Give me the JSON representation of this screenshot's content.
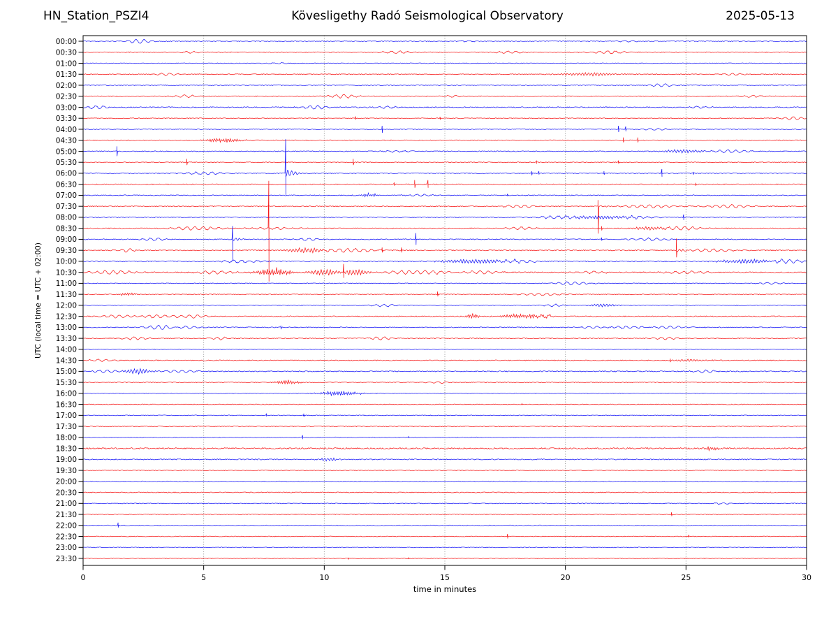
{
  "header": {
    "station": "HN_Station_PSZI4",
    "observatory": "Kövesligethy Radó Seismological Observatory",
    "date": "2025-05-13"
  },
  "axes": {
    "xlabel": "time in minutes",
    "ylabel": "UTC (local time = UTC + 02:00)",
    "xlim": [
      0,
      30
    ],
    "xticks": [
      0,
      5,
      10,
      15,
      20,
      25,
      30
    ],
    "grid_minutes": [
      5,
      10,
      15,
      20,
      25
    ],
    "grid_on": true
  },
  "colors": {
    "blue_trace": "#0000f5",
    "red_trace": "#f50000",
    "grid": "#7a7a7a",
    "frame": "#000000",
    "text": "#000000",
    "background": "#ffffff"
  },
  "chart_data": {
    "type": "line",
    "subtype": "helicorder-day-plot",
    "minutes_per_row": 30,
    "row_spacing_px": 15.745,
    "event_format": "types: w=slow wiggle, b=burst packet, B=dense dark burst, s=spike[up,down], S=major spike with coda; fields [type, start_minute, amplitude_px, width_min_or_down_px]",
    "rows": [
      {
        "label": "00:00",
        "color": "b",
        "noise": 0.55,
        "events": [
          [
            "w",
            2.3,
            3,
            0.5
          ],
          [
            "w",
            16,
            1.2,
            0.4
          ],
          [
            "w",
            22.5,
            1,
            0.5
          ]
        ]
      },
      {
        "label": "00:30",
        "color": "r",
        "noise": 0.6,
        "events": [
          [
            "w",
            4.5,
            1.2,
            0.5
          ],
          [
            "w",
            13,
            1.8,
            0.6
          ],
          [
            "w",
            17.7,
            1.8,
            0.5
          ],
          [
            "w",
            21.8,
            1.8,
            0.8
          ]
        ]
      },
      {
        "label": "01:00",
        "color": "b",
        "noise": 0.5,
        "events": [
          [
            "w",
            8,
            0.8,
            0.5
          ]
        ]
      },
      {
        "label": "01:30",
        "color": "r",
        "noise": 0.55,
        "events": [
          [
            "w",
            3.5,
            1.8,
            0.5
          ],
          [
            "b",
            21,
            2,
            1.2
          ],
          [
            "w",
            27,
            1.2,
            0.5
          ]
        ]
      },
      {
        "label": "02:00",
        "color": "b",
        "noise": 0.5,
        "events": [
          [
            "w",
            24,
            1.8,
            0.6
          ]
        ]
      },
      {
        "label": "02:30",
        "color": "r",
        "noise": 0.6,
        "events": [
          [
            "w",
            4.2,
            2,
            0.5
          ],
          [
            "w",
            10.8,
            2.5,
            0.6
          ],
          [
            "w",
            15.2,
            1.3,
            0.4
          ],
          [
            "w",
            27.8,
            1.5,
            0.5
          ]
        ]
      },
      {
        "label": "03:00",
        "color": "b",
        "noise": 0.7,
        "events": [
          [
            "w",
            0.6,
            2,
            0.5
          ],
          [
            "w",
            9.6,
            3,
            0.5
          ],
          [
            "w",
            12.5,
            1.5,
            0.6
          ],
          [
            "w",
            25.5,
            1.2,
            0.6
          ]
        ]
      },
      {
        "label": "03:30",
        "color": "r",
        "noise": 0.5,
        "events": [
          [
            "s",
            11.3,
            2,
            2
          ],
          [
            "s",
            14.8,
            2,
            2
          ],
          [
            "w",
            29.4,
            2.2,
            0.5
          ]
        ]
      },
      {
        "label": "04:00",
        "color": "b",
        "noise": 0.5,
        "events": [
          [
            "s",
            12.4,
            5,
            5
          ],
          [
            "s",
            22.2,
            5,
            4
          ],
          [
            "s",
            22.5,
            4,
            3
          ],
          [
            "w",
            23.8,
            1.5,
            0.5
          ]
        ]
      },
      {
        "label": "04:30",
        "color": "r",
        "noise": 0.6,
        "events": [
          [
            "B",
            5.9,
            2.8,
            0.7
          ],
          [
            "s",
            22.4,
            4,
            3
          ],
          [
            "s",
            23.0,
            4,
            3
          ]
        ]
      },
      {
        "label": "05:00",
        "color": "b",
        "noise": 0.6,
        "events": [
          [
            "s",
            1.4,
            7,
            7
          ],
          [
            "w",
            13,
            1.3,
            0.5
          ],
          [
            "b",
            24.8,
            2.2,
            0.9
          ],
          [
            "w",
            26.8,
            1.8,
            0.8
          ]
        ]
      },
      {
        "label": "05:30",
        "color": "r",
        "noise": 0.5,
        "events": [
          [
            "s",
            4.3,
            5,
            4
          ],
          [
            "s",
            11.2,
            5,
            4
          ],
          [
            "s",
            18.8,
            2,
            2
          ],
          [
            "s",
            22.2,
            2.5,
            2
          ]
        ]
      },
      {
        "label": "06:00",
        "color": "b",
        "noise": 0.6,
        "events": [
          [
            "w",
            5,
            2,
            0.8
          ],
          [
            "S",
            8.4,
            49,
            31
          ],
          [
            "s",
            18.6,
            3,
            3
          ],
          [
            "s",
            18.9,
            3,
            2
          ],
          [
            "s",
            21.6,
            3,
            2
          ],
          [
            "s",
            24.0,
            6,
            5
          ],
          [
            "s",
            25.3,
            2,
            2
          ]
        ]
      },
      {
        "label": "06:30",
        "color": "r",
        "noise": 0.6,
        "events": [
          [
            "s",
            12.9,
            2.5,
            2
          ],
          [
            "s",
            13.75,
            6,
            5
          ],
          [
            "s",
            14.3,
            6,
            5
          ],
          [
            "s",
            25.4,
            2,
            2
          ]
        ]
      },
      {
        "label": "07:00",
        "color": "b",
        "noise": 0.6,
        "events": [
          [
            "B",
            11.9,
            2,
            0.4
          ],
          [
            "w",
            14,
            1.5,
            0.5
          ],
          [
            "s",
            17.6,
            2,
            1.5
          ]
        ]
      },
      {
        "label": "07:30",
        "color": "r",
        "noise": 0.6,
        "events": [
          [
            "w",
            18,
            2,
            0.7
          ],
          [
            "S",
            21.35,
            9,
            39
          ],
          [
            "w",
            23.5,
            2,
            1.2
          ],
          [
            "w",
            26.8,
            2.5,
            0.8
          ]
        ]
      },
      {
        "label": "08:00",
        "color": "b",
        "noise": 0.6,
        "events": [
          [
            "w",
            19.8,
            2,
            1
          ],
          [
            "b",
            21.5,
            2,
            1.5
          ],
          [
            "w",
            23,
            1.5,
            1
          ],
          [
            "s",
            24.9,
            4,
            4
          ]
        ]
      },
      {
        "label": "08:30",
        "color": "r",
        "noise": 0.6,
        "events": [
          [
            "w",
            4.7,
            2.5,
            1
          ],
          [
            "w",
            8,
            1.5,
            1
          ],
          [
            "s",
            7.7,
            68,
            76
          ],
          [
            "w",
            18.2,
            2,
            0.6
          ],
          [
            "s",
            21.5,
            3,
            3
          ],
          [
            "b",
            23.5,
            2,
            0.8
          ],
          [
            "w",
            24.8,
            2.5,
            0.8
          ]
        ]
      },
      {
        "label": "09:00",
        "color": "b",
        "noise": 0.6,
        "events": [
          [
            "w",
            2.9,
            2,
            0.5
          ],
          [
            "S",
            6.2,
            19,
            31
          ],
          [
            "w",
            9.3,
            1.8,
            0.5
          ],
          [
            "s",
            13.8,
            9,
            8
          ],
          [
            "s",
            21.5,
            2.5,
            2
          ],
          [
            "w",
            23.5,
            1.8,
            0.8
          ]
        ]
      },
      {
        "label": "09:30",
        "color": "r",
        "noise": 0.7,
        "events": [
          [
            "w",
            1.8,
            2.2,
            0.4
          ],
          [
            "b",
            9.3,
            3,
            0.8
          ],
          [
            "w",
            11,
            2.5,
            1.2
          ],
          [
            "s",
            12.4,
            4,
            3
          ],
          [
            "s",
            13.2,
            4,
            3
          ],
          [
            "S",
            24.6,
            17,
            10
          ],
          [
            "w",
            26,
            2,
            1
          ]
        ]
      },
      {
        "label": "10:00",
        "color": "b",
        "noise": 0.75,
        "events": [
          [
            "w",
            6.5,
            1.8,
            0.8
          ],
          [
            "b",
            16.3,
            2.5,
            1.5
          ],
          [
            "w",
            18,
            2,
            0.8
          ],
          [
            "b",
            27.5,
            2.5,
            1.2
          ],
          [
            "w",
            29.2,
            3,
            0.6
          ]
        ]
      },
      {
        "label": "10:30",
        "color": "r",
        "noise": 0.75,
        "events": [
          [
            "w",
            1.2,
            2.5,
            1
          ],
          [
            "w",
            5.5,
            2,
            0.8
          ],
          [
            "B",
            7.9,
            5,
            0.7
          ],
          [
            "b",
            10,
            4,
            0.6
          ],
          [
            "S",
            10.8,
            12,
            8
          ],
          [
            "b",
            11.3,
            4,
            0.5
          ],
          [
            "w",
            13.3,
            2.5,
            0.8
          ],
          [
            "w",
            14.5,
            2,
            0.8
          ],
          [
            "w",
            16.5,
            2,
            0.8
          ],
          [
            "w",
            21,
            1.5,
            1
          ],
          [
            "w",
            25,
            1.5,
            1
          ]
        ]
      },
      {
        "label": "11:00",
        "color": "b",
        "noise": 0.5,
        "events": [
          [
            "w",
            20.3,
            2.2,
            0.7
          ],
          [
            "w",
            28.5,
            1.3,
            0.5
          ]
        ]
      },
      {
        "label": "11:30",
        "color": "r",
        "noise": 0.5,
        "events": [
          [
            "B",
            1.8,
            2,
            0.35
          ],
          [
            "s",
            14.7,
            4,
            3
          ],
          [
            "w",
            19,
            1.5,
            1
          ]
        ]
      },
      {
        "label": "12:00",
        "color": "b",
        "noise": 0.5,
        "events": [
          [
            "w",
            12.5,
            1.8,
            0.5
          ],
          [
            "w",
            19.5,
            1.8,
            0.4
          ],
          [
            "b",
            21.6,
            2,
            0.6
          ]
        ]
      },
      {
        "label": "12:30",
        "color": "r",
        "noise": 0.65,
        "events": [
          [
            "w",
            1.5,
            2,
            0.8
          ],
          [
            "w",
            3,
            2.2,
            0.8
          ],
          [
            "w",
            4.5,
            2,
            0.6
          ],
          [
            "B",
            16.15,
            3.5,
            0.25
          ],
          [
            "B",
            18.3,
            2.5,
            1.0
          ],
          [
            "w",
            19.2,
            2,
            0.4
          ]
        ]
      },
      {
        "label": "13:00",
        "color": "b",
        "noise": 0.6,
        "events": [
          [
            "w",
            3.2,
            2.8,
            0.7
          ],
          [
            "w",
            4.3,
            2,
            0.5
          ],
          [
            "s",
            8.2,
            2.5,
            2
          ],
          [
            "w",
            21.3,
            1.8,
            0.7
          ],
          [
            "w",
            22.5,
            1.8,
            0.9
          ],
          [
            "w",
            24.3,
            1.8,
            0.7
          ]
        ]
      },
      {
        "label": "13:30",
        "color": "r",
        "noise": 0.6,
        "events": [
          [
            "w",
            2.2,
            1.8,
            0.6
          ],
          [
            "w",
            5.7,
            2,
            0.4
          ],
          [
            "w",
            12.4,
            2.2,
            0.5
          ],
          [
            "w",
            24.2,
            1.5,
            0.6
          ]
        ]
      },
      {
        "label": "14:00",
        "color": "b",
        "noise": 0.5,
        "events": []
      },
      {
        "label": "14:30",
        "color": "r",
        "noise": 0.6,
        "events": [
          [
            "w",
            0.8,
            1.5,
            0.6
          ],
          [
            "s",
            24.35,
            2.5,
            2
          ],
          [
            "b",
            25.2,
            1.3,
            0.8
          ]
        ]
      },
      {
        "label": "15:00",
        "color": "b",
        "noise": 0.7,
        "events": [
          [
            "w",
            1,
            2,
            0.6
          ],
          [
            "b",
            2.3,
            3.5,
            0.5
          ],
          [
            "w",
            4,
            1.5,
            0.8
          ],
          [
            "w",
            25.8,
            2,
            0.5
          ]
        ]
      },
      {
        "label": "15:30",
        "color": "r",
        "noise": 0.5,
        "events": [
          [
            "B",
            8.5,
            3,
            0.45
          ],
          [
            "w",
            14.7,
            1.3,
            0.5
          ]
        ]
      },
      {
        "label": "16:00",
        "color": "b",
        "noise": 0.5,
        "events": [
          [
            "B",
            10.7,
            3.2,
            0.8
          ]
        ]
      },
      {
        "label": "16:30",
        "color": "r",
        "noise": 0.5,
        "events": [
          [
            "s",
            18.2,
            1.2,
            1
          ]
        ]
      },
      {
        "label": "17:00",
        "color": "b",
        "noise": 0.5,
        "events": [
          [
            "s",
            7.6,
            2,
            1.5
          ],
          [
            "s",
            9.15,
            2.5,
            2
          ]
        ]
      },
      {
        "label": "17:30",
        "color": "r",
        "noise": 0.5,
        "events": []
      },
      {
        "label": "18:00",
        "color": "b",
        "noise": 0.5,
        "events": [
          [
            "s",
            9.1,
            3,
            2.5
          ],
          [
            "s",
            13.5,
            1.2,
            1
          ]
        ]
      },
      {
        "label": "18:30",
        "color": "r",
        "noise": 0.95,
        "events": [
          [
            "B",
            26.1,
            2.5,
            0.3
          ]
        ]
      },
      {
        "label": "19:00",
        "color": "b",
        "noise": 0.7,
        "events": [
          [
            "b",
            10.2,
            2,
            0.4
          ]
        ]
      },
      {
        "label": "19:30",
        "color": "r",
        "noise": 0.5,
        "events": []
      },
      {
        "label": "20:00",
        "color": "b",
        "noise": 0.5,
        "events": []
      },
      {
        "label": "20:30",
        "color": "r",
        "noise": 0.6,
        "events": []
      },
      {
        "label": "21:00",
        "color": "b",
        "noise": 0.5,
        "events": [
          [
            "w",
            26.5,
            1.2,
            0.4
          ]
        ]
      },
      {
        "label": "21:30",
        "color": "r",
        "noise": 0.5,
        "events": [
          [
            "s",
            24.4,
            3,
            2.5
          ]
        ]
      },
      {
        "label": "22:00",
        "color": "b",
        "noise": 0.5,
        "events": [
          [
            "s",
            1.45,
            4,
            3
          ]
        ]
      },
      {
        "label": "22:30",
        "color": "r",
        "noise": 0.5,
        "events": [
          [
            "s",
            17.6,
            3.5,
            3
          ],
          [
            "s",
            25.1,
            1.5,
            1.5
          ]
        ]
      },
      {
        "label": "23:00",
        "color": "b",
        "noise": 0.5,
        "events": []
      },
      {
        "label": "23:30",
        "color": "r",
        "noise": 0.5,
        "events": [
          [
            "s",
            11,
            1,
            1
          ],
          [
            "s",
            13.5,
            1,
            1
          ]
        ]
      }
    ]
  }
}
